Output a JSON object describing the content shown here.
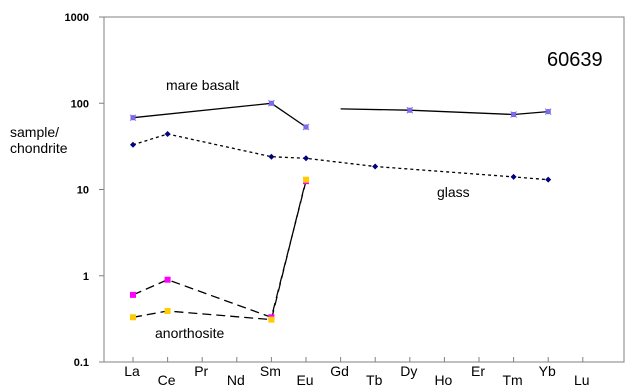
{
  "chart_data": {
    "type": "line",
    "title": "",
    "sample_label": "60639",
    "ylabel_line1": "sample/",
    "ylabel_line2": "chondrite",
    "yscale": "log",
    "ylim": [
      0.1,
      1000
    ],
    "y_ticks": [
      "0.1",
      "1",
      "10",
      "100",
      "1000"
    ],
    "categories": [
      "La",
      "Ce",
      "Pr",
      "Nd",
      "Sm",
      "Eu",
      "Gd",
      "Tb",
      "Dy",
      "Ho",
      "Er",
      "Tm",
      "Yb",
      "Lu"
    ],
    "grid": false,
    "series": [
      {
        "name": "mare basalt",
        "color": "#000000",
        "dash": "solid",
        "marker_color": "#cc33cc",
        "segments": [
          [
            {
              "x": "La",
              "y": 68
            },
            {
              "x": "Sm",
              "y": 100
            },
            {
              "x": "Eu",
              "y": 53
            }
          ],
          [
            {
              "x": "Gd",
              "y": 86
            },
            {
              "x": "Dy",
              "y": 83
            },
            {
              "x": "Tm",
              "y": 74
            },
            {
              "x": "Yb",
              "y": 80
            }
          ]
        ],
        "points": [
          {
            "x": "La",
            "y": 68
          },
          {
            "x": "Sm",
            "y": 100
          },
          {
            "x": "Eu",
            "y": 53
          },
          {
            "x": "Dy",
            "y": 83
          },
          {
            "x": "Tm",
            "y": 74
          },
          {
            "x": "Yb",
            "y": 80
          }
        ]
      },
      {
        "name": "glass",
        "color": "#000000",
        "dash": "dotted",
        "marker_color": "#000080",
        "points": [
          {
            "x": "La",
            "y": 33
          },
          {
            "x": "Ce",
            "y": 44
          },
          {
            "x": "Sm",
            "y": 24
          },
          {
            "x": "Eu",
            "y": 23
          },
          {
            "x": "Tb",
            "y": 18.5
          },
          {
            "x": "Tm",
            "y": 14
          },
          {
            "x": "Yb",
            "y": 13
          }
        ]
      },
      {
        "name": "anorthosite",
        "color": "#000000",
        "dash": "dashed",
        "marker_color": "#ff00ff",
        "points": [
          {
            "x": "La",
            "y": 0.6
          },
          {
            "x": "Ce",
            "y": 0.9
          },
          {
            "x": "Sm",
            "y": 0.33
          },
          {
            "x": "Eu",
            "y": 12.5
          }
        ]
      },
      {
        "name": "",
        "color": "#000000",
        "dash": "dashed",
        "marker_color": "#ffcc00",
        "points": [
          {
            "x": "La",
            "y": 0.33
          },
          {
            "x": "Ce",
            "y": 0.39
          },
          {
            "x": "Sm",
            "y": 0.31
          },
          {
            "x": "Eu",
            "y": 13
          }
        ]
      }
    ],
    "annotations": [
      "mare basalt",
      "glass",
      "anorthosite"
    ]
  }
}
